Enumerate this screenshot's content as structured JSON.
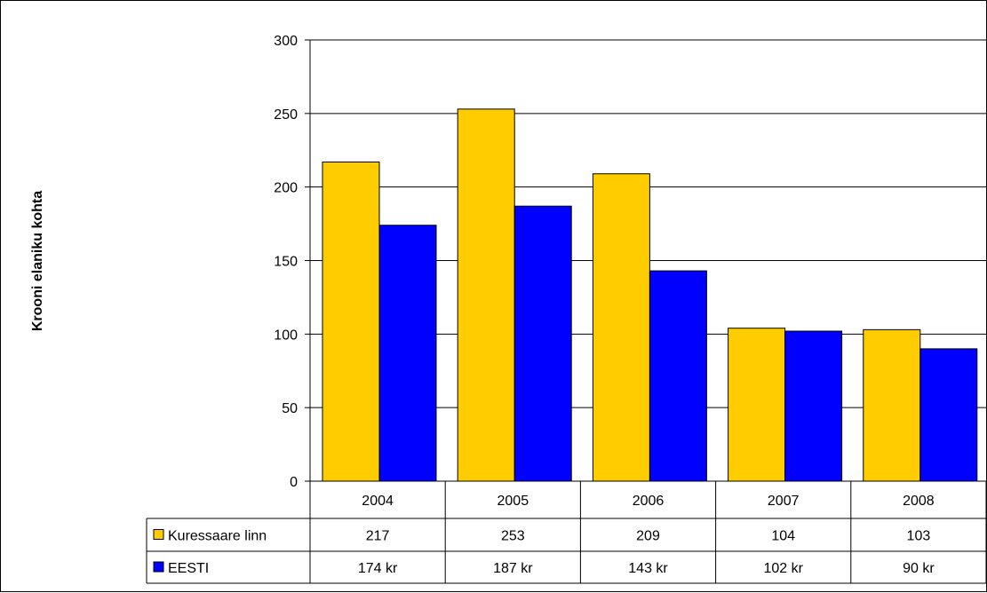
{
  "chart_data": {
    "type": "bar",
    "title": "",
    "xlabel": "",
    "ylabel": "Krooni elaniku kohta",
    "ylim": [
      0,
      300
    ],
    "yticks": [
      "0",
      "50",
      "100",
      "150",
      "200",
      "250",
      "300"
    ],
    "categories": [
      "2004",
      "2005",
      "2006",
      "2007",
      "2008"
    ],
    "grid": true,
    "legend": "data-table",
    "series": [
      {
        "name": "Kuressaare linn",
        "color": "#FFCC00",
        "values": [
          217,
          253,
          209,
          104,
          103
        ],
        "labels": [
          "217",
          "253",
          "209",
          "104",
          "103"
        ]
      },
      {
        "name": "EESTI",
        "color": "#0000FF",
        "values": [
          174,
          187,
          143,
          102,
          90
        ],
        "labels": [
          "174 kr",
          "187 kr",
          "143 kr",
          "102 kr",
          "90 kr"
        ]
      }
    ]
  }
}
